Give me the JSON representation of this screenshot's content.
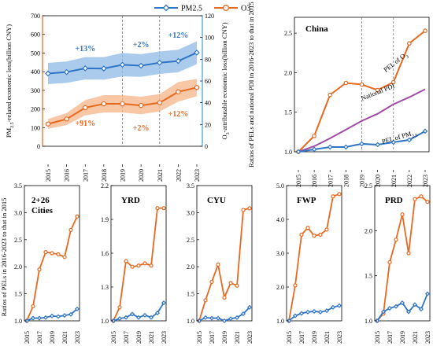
{
  "colors": {
    "pm": "#2f75c7",
    "pm_band": "#8fb9e6",
    "o3": "#e8681f",
    "o3_band": "#f5b487",
    "pdi": "#a04ca0",
    "axis_right": "#3d9fd0",
    "axis_left": "#e8681f",
    "ann_pm": "#2f75c7",
    "ann_o3": "#e8681f"
  },
  "legend": {
    "pm_label": "PM2.5",
    "o3_label": "O3"
  },
  "chart_data": [
    {
      "id": "econ",
      "type": "line",
      "x": [
        "2015",
        "2016",
        "2017",
        "2018",
        "2019",
        "2020",
        "2021",
        "2022",
        "2023"
      ],
      "ylabel_left": "PM2.5-related economic loss(billion CNY)",
      "ylabel_right": "O3-attributable economic loss(billion CNY)",
      "ylim_left": [
        0,
        700
      ],
      "yticks_left": [
        "0",
        "100",
        "200",
        "300",
        "400",
        "500",
        "600",
        "700"
      ],
      "ylim_right": [
        0,
        120
      ],
      "yticks_right": [
        "0",
        "20",
        "40",
        "60",
        "80",
        "100",
        "120"
      ],
      "series": [
        {
          "name": "PM2.5",
          "axis": "left",
          "values": [
            390,
            398,
            418,
            417,
            437,
            432,
            448,
            457,
            502
          ],
          "lower": [
            333,
            340,
            358,
            357,
            375,
            372,
            388,
            397,
            440
          ],
          "upper": [
            447,
            455,
            478,
            478,
            500,
            494,
            508,
            518,
            563
          ]
        },
        {
          "name": "O3",
          "axis": "right",
          "values": [
            20.5,
            25,
            35.5,
            39,
            39,
            37.5,
            40,
            50,
            54
          ],
          "lower": [
            16,
            19.5,
            28.5,
            31,
            31,
            29.5,
            32,
            41,
            46
          ],
          "upper": [
            25,
            30.5,
            42.5,
            47,
            47,
            45.5,
            48,
            59,
            62
          ]
        }
      ],
      "annotations_pm": [
        "+13%",
        "+2%",
        "+12%"
      ],
      "annotations_o3": [
        "+91%",
        "+2%",
        "+12%"
      ],
      "vlines_x": [
        "2019",
        "2021"
      ]
    },
    {
      "id": "china",
      "type": "line",
      "title": "China",
      "x": [
        "2015",
        "2016",
        "2017",
        "2018",
        "2019",
        "2020",
        "2021",
        "2022",
        "2023"
      ],
      "ylabel": "Ratios of PELs and national PDI in 2016-2023 to that in 2015",
      "ylim": [
        1.0,
        2.7
      ],
      "yticks": [
        "1.0",
        "1.5",
        "2.0",
        "2.5"
      ],
      "series": [
        {
          "name": "PEL of O3",
          "values": [
            1.0,
            1.2,
            1.72,
            1.87,
            1.85,
            1.78,
            1.88,
            2.37,
            2.53
          ]
        },
        {
          "name": "National PDI",
          "values": [
            1.0,
            1.07,
            1.17,
            1.28,
            1.39,
            1.48,
            1.6,
            1.69,
            1.79
          ]
        },
        {
          "name": "PEL of PM2.5",
          "values": [
            1.0,
            1.03,
            1.06,
            1.06,
            1.1,
            1.09,
            1.12,
            1.15,
            1.26
          ]
        }
      ],
      "labels": {
        "o3": "PEL of O3",
        "pdi": "National PDI",
        "pm": "PEL of PM2.5"
      },
      "vlines_x": [
        "2019",
        "2021"
      ]
    },
    {
      "id": "c226",
      "type": "line",
      "title": "2+26 Cities",
      "x": [
        "2015",
        "2016",
        "2017",
        "2018",
        "2019",
        "2020",
        "2021",
        "2022",
        "2023"
      ],
      "ylabel": "Ratios of PELs in 2016-2023 to that in 2015",
      "ylim": [
        1.0,
        3.5
      ],
      "yticks": [
        "1.0",
        "1.5",
        "2.0",
        "2.5",
        "3.0",
        "3.5"
      ],
      "series": [
        {
          "name": "O3",
          "values": [
            1.0,
            1.27,
            1.95,
            2.27,
            2.25,
            2.23,
            2.18,
            2.68,
            2.93
          ]
        },
        {
          "name": "PM2.5",
          "values": [
            1.0,
            1.05,
            1.05,
            1.06,
            1.09,
            1.08,
            1.1,
            1.12,
            1.22
          ]
        }
      ]
    },
    {
      "id": "yrd",
      "type": "line",
      "title": "YRD",
      "x": [
        "2015",
        "2016",
        "2017",
        "2018",
        "2019",
        "2020",
        "2021",
        "2022",
        "2023"
      ],
      "ylim": [
        1.0,
        2.2
      ],
      "yticks": [
        "1.0",
        "1.3",
        "1.6",
        "1.9",
        "2.2"
      ],
      "series": [
        {
          "name": "O3",
          "values": [
            1.0,
            1.12,
            1.53,
            1.48,
            1.49,
            1.51,
            1.49,
            2.0,
            2.0
          ]
        },
        {
          "name": "PM2.5",
          "values": [
            1.0,
            1.02,
            1.03,
            1.06,
            1.03,
            1.05,
            1.03,
            1.07,
            1.16
          ]
        }
      ]
    },
    {
      "id": "cyu",
      "type": "line",
      "title": "CYU",
      "x": [
        "2015",
        "2016",
        "2017",
        "2018",
        "2019",
        "2020",
        "2021",
        "2022",
        "2023"
      ],
      "ylim": [
        1.0,
        3.5
      ],
      "yticks": [
        "1.0",
        "1.5",
        "2.0",
        "2.5",
        "3.0",
        "3.5"
      ],
      "series": [
        {
          "name": "O3",
          "values": [
            1.0,
            1.38,
            1.72,
            2.04,
            1.43,
            1.7,
            1.65,
            3.05,
            3.08
          ]
        },
        {
          "name": "PM2.5",
          "values": [
            1.0,
            1.06,
            1.05,
            1.05,
            1.0,
            1.04,
            1.06,
            1.13,
            1.25
          ]
        }
      ]
    },
    {
      "id": "fwp",
      "type": "line",
      "title": "FWP",
      "x": [
        "2015",
        "2016",
        "2017",
        "2018",
        "2019",
        "2020",
        "2021",
        "2022",
        "2023"
      ],
      "ylim": [
        1.0,
        5.0
      ],
      "yticks": [
        "1.0",
        "2.0",
        "3.0",
        "4.0",
        "5.0"
      ],
      "series": [
        {
          "name": "O3",
          "values": [
            1.0,
            2.05,
            3.55,
            3.75,
            3.52,
            3.55,
            3.7,
            4.68,
            4.75
          ]
        },
        {
          "name": "PM2.5",
          "values": [
            1.0,
            1.15,
            1.22,
            1.26,
            1.28,
            1.26,
            1.3,
            1.4,
            1.45
          ]
        }
      ]
    },
    {
      "id": "prd",
      "type": "line",
      "title": "PRD",
      "x": [
        "2015",
        "2016",
        "2017",
        "2018",
        "2019",
        "2020",
        "2021",
        "2022",
        "2023"
      ],
      "ylim": [
        1.0,
        2.5
      ],
      "yticks": [
        "1.0",
        "1.5",
        "2.0",
        "2.5"
      ],
      "series": [
        {
          "name": "O3",
          "values": [
            1.0,
            1.08,
            1.65,
            1.9,
            2.18,
            1.75,
            2.35,
            2.38,
            2.32
          ]
        },
        {
          "name": "PM2.5",
          "values": [
            1.0,
            1.1,
            1.14,
            1.16,
            1.2,
            1.1,
            1.18,
            1.13,
            1.3
          ]
        }
      ]
    }
  ]
}
